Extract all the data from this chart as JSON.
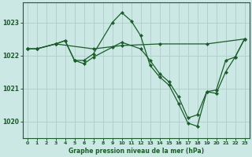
{
  "background_color": "#cce8e4",
  "grid_color": "#aacfc8",
  "line_color": "#1a5c2a",
  "xlabel": "Graphe pression niveau de la mer (hPa)",
  "xlim": [
    -0.5,
    23.5
  ],
  "ylim": [
    1019.5,
    1023.6
  ],
  "yticks": [
    1020,
    1021,
    1022,
    1023
  ],
  "xticks": [
    0,
    1,
    2,
    3,
    4,
    5,
    6,
    7,
    8,
    9,
    10,
    11,
    12,
    13,
    14,
    15,
    16,
    17,
    18,
    19,
    20,
    21,
    22,
    23
  ],
  "series": [
    {
      "x": [
        0,
        1,
        3,
        7,
        10,
        14,
        19,
        23
      ],
      "y": [
        1022.2,
        1022.2,
        1022.35,
        1022.2,
        1022.3,
        1022.35,
        1022.35,
        1022.5
      ]
    },
    {
      "x": [
        0,
        1,
        3,
        4,
        5,
        6,
        7,
        9,
        10,
        11,
        12,
        13,
        14,
        15,
        16,
        17,
        18,
        19,
        20,
        21,
        22,
        23
      ],
      "y": [
        1022.2,
        1022.2,
        1022.35,
        1022.45,
        1021.85,
        1021.85,
        1022.05,
        1023.0,
        1023.3,
        1023.05,
        1022.6,
        1021.7,
        1021.35,
        1021.1,
        1020.55,
        1019.95,
        1019.85,
        1020.9,
        1020.95,
        1021.85,
        1021.95,
        1022.5
      ]
    },
    {
      "x": [
        0,
        1,
        3,
        4,
        5,
        6,
        7,
        9,
        10,
        12,
        13,
        14,
        15,
        16,
        17,
        18,
        19,
        20,
        21,
        22,
        23
      ],
      "y": [
        1022.2,
        1022.2,
        1022.35,
        1022.45,
        1021.85,
        1021.75,
        1021.95,
        1022.25,
        1022.4,
        1022.2,
        1021.85,
        1021.45,
        1021.2,
        1020.75,
        1020.1,
        1020.2,
        1020.9,
        1020.85,
        1021.5,
        1021.95,
        1022.5
      ]
    }
  ]
}
